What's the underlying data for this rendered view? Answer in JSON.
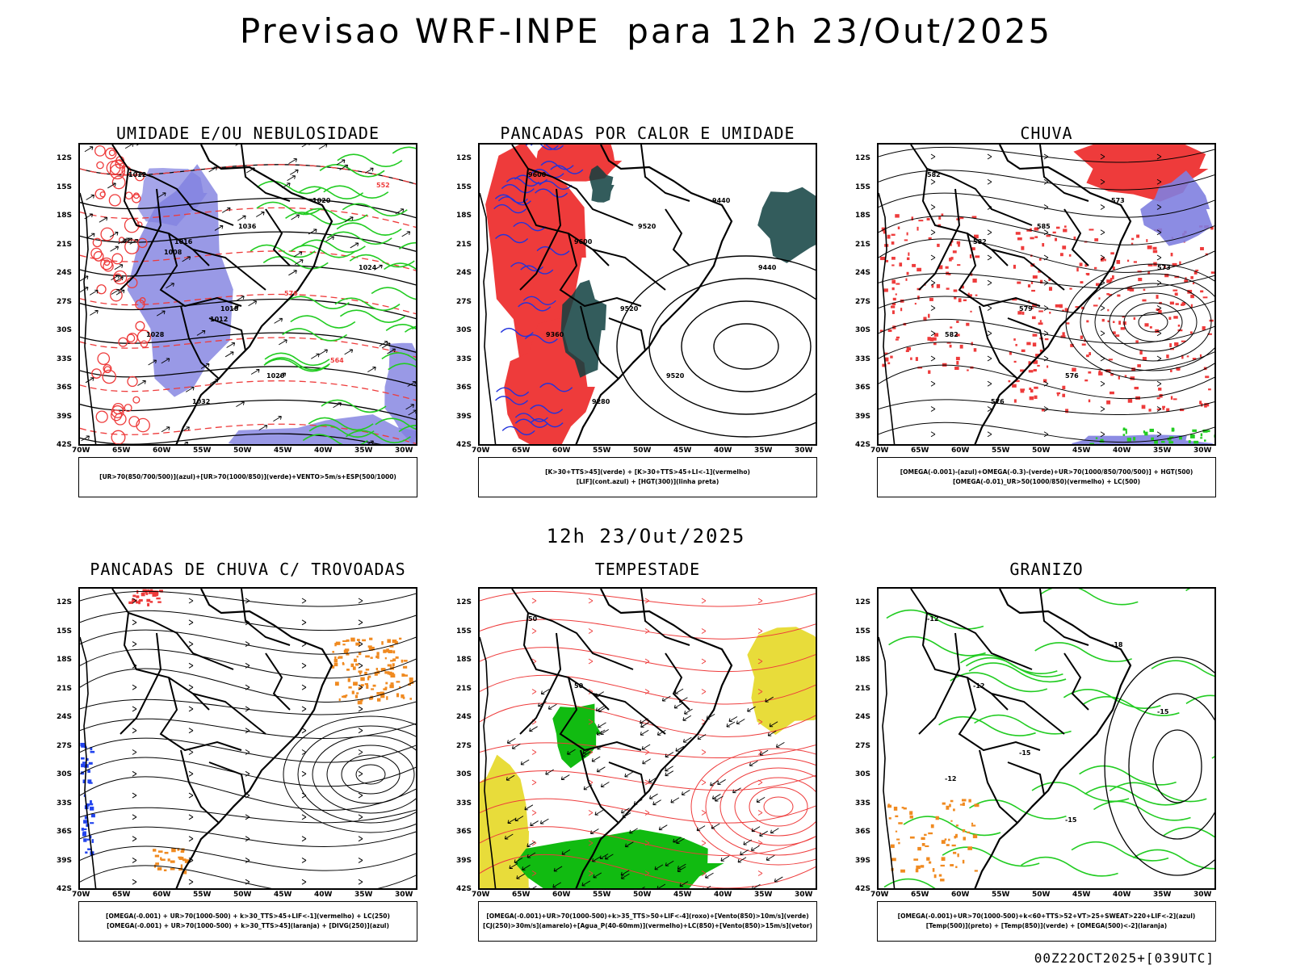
{
  "header": {
    "title": "Previsao WRF-INPE  para 12h 23/Out/2025"
  },
  "middle": {
    "title": "12h 23/Out/2025"
  },
  "footer": {
    "run_label": "00Z22OCT2025+[039UTC]"
  },
  "axes": {
    "lat_labels": [
      "12S",
      "15S",
      "18S",
      "21S",
      "24S",
      "27S",
      "30S",
      "33S",
      "36S",
      "39S",
      "42S"
    ],
    "lon_labels": [
      "70W",
      "65W",
      "60W",
      "55W",
      "50W",
      "45W",
      "40W",
      "35W",
      "30W"
    ]
  },
  "colors": {
    "blue": "#7f7fe0",
    "green": "#22cc22",
    "red": "#ee3b3b",
    "teal": "#0f3f3f",
    "yellow": "#e8dc3a",
    "orange": "#f08a20"
  },
  "panels": [
    {
      "id": "umidade",
      "title": "UMIDADE E/OU NEBULOSIDADE",
      "legend": [
        "[UR>70(850/700/500)](azul)+[UR>70(1000/850)](verde)+VENTO>5m/s+ESP(500/1000)"
      ],
      "labels": [
        "1012",
        "1016",
        "1018",
        "1020",
        "1020",
        "1024",
        "1028",
        "1032",
        "1036",
        "576",
        "564",
        "552",
        "1008",
        "1012"
      ]
    },
    {
      "id": "pancadas-calor",
      "title": "PANCADAS POR CALOR E UMIDADE",
      "legend": [
        "[K>30+TTS>45](verde) + [K>30+TTS>45+LI<-1](vermelho)",
        "[LIF](cont.azul) + [HGT(300)](linha preta)"
      ],
      "labels": [
        "9600",
        "9600",
        "9520",
        "9520",
        "9440",
        "9440",
        "9360",
        "9280",
        "9520"
      ]
    },
    {
      "id": "chuva",
      "title": "CHUVA",
      "legend": [
        "[OMEGA(-0.001)-(azul)+OMEGA(-0.3)-(verde)+UR>70(1000/850/700/500)] + HGT(500)",
        "[OMEGA(-0.01)_UR>50(1000/850)(vermelho) + LC(500)"
      ],
      "labels": [
        "582",
        "582",
        "579",
        "576",
        "573",
        "573",
        "582",
        "576",
        "585"
      ]
    },
    {
      "id": "trovoadas",
      "title": "PANCADAS DE CHUVA C/ TROVOADAS",
      "legend": [
        "[OMEGA(-0.001) + UR>70(1000-500) + k>30_TTS>45+LIF<-1](vermelho) + LC(250)",
        "[OMEGA(-0.001) + UR>70(1000-500) + k>30_TTS>45](laranja) + [DIVG(250)](azul)"
      ],
      "labels": []
    },
    {
      "id": "tempestade",
      "title": "TEMPESTADE",
      "legend": [
        "[OMEGA(-0.001)+UR>70(1000-500)+k>35_TTS>50+LIF<-4](roxo)+[Vento(850)>10m/s](verde)",
        "[CJ(250)>30m/s](amarelo)+[Agua_P(40-60mm)](vermelho)+LC(850)+[Vento(850)>15m/s](vetor)"
      ],
      "labels": [
        "50",
        "50"
      ]
    },
    {
      "id": "granizo",
      "title": "GRANIZO",
      "legend": [
        "[OMEGA(-0.001)+UR>70(1000-500)+k<60+TTS>52+VT>25+SWEAT>220+LIF<-2](azul)",
        "[Temp(500)](preto) + [Temp(850)](verde) + [OMEGA(500)<-2](laranja)"
      ],
      "labels": [
        "-12",
        "-12",
        "-15",
        "-15",
        "-18",
        "-15",
        "-12"
      ]
    }
  ]
}
